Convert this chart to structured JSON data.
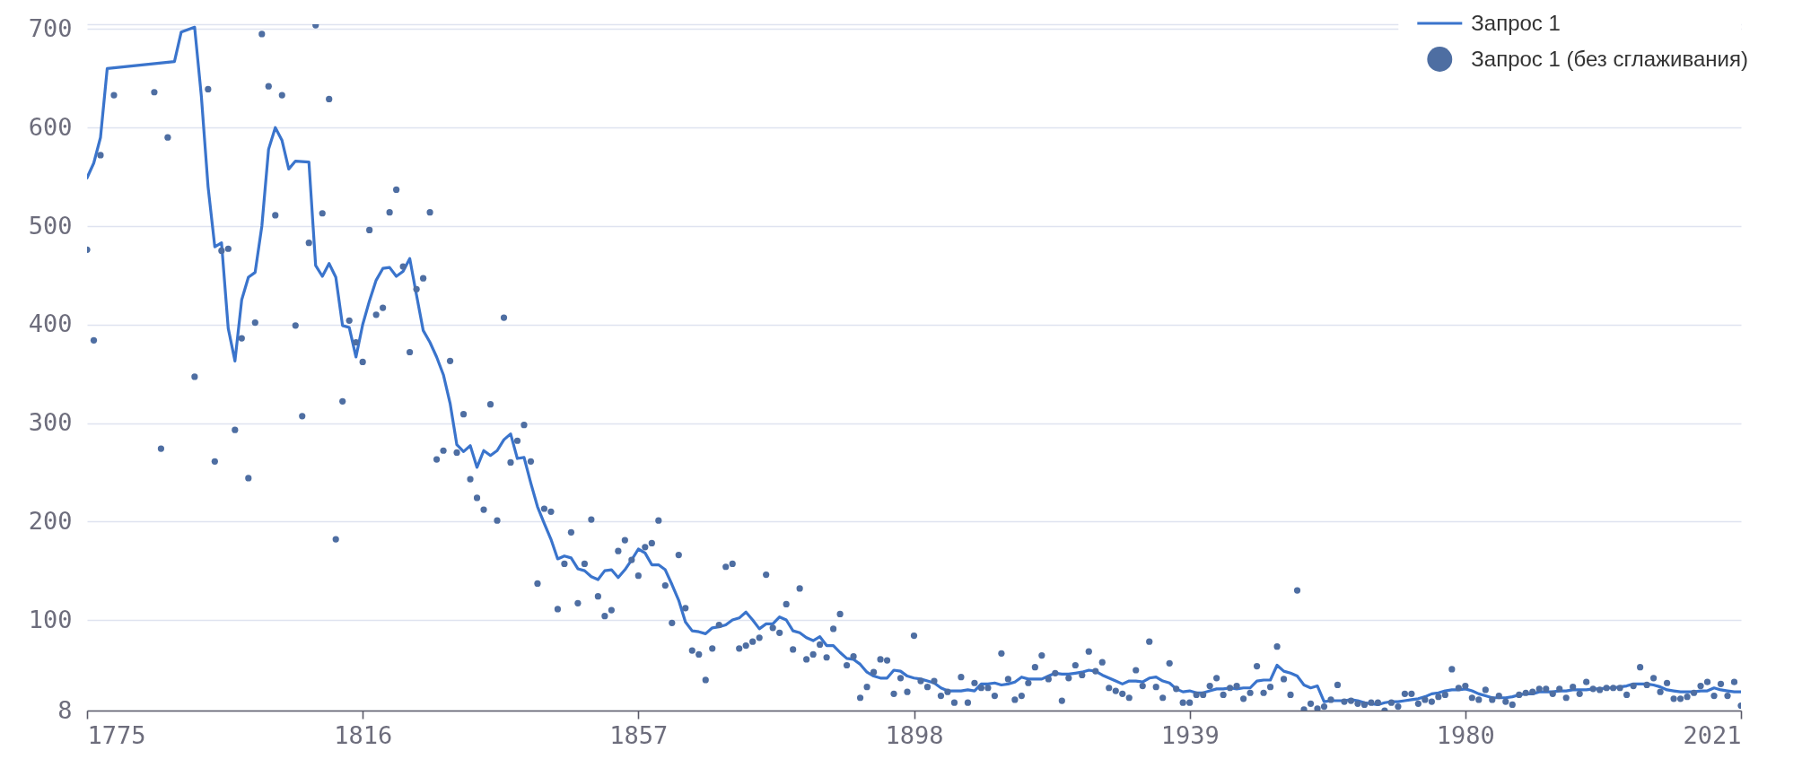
{
  "chart_data": {
    "type": "line",
    "xlim": [
      1775,
      2021
    ],
    "xticks": [
      1775,
      1816,
      1857,
      1898,
      1939,
      1980,
      2021
    ],
    "ylim": [
      8,
      705
    ],
    "yticks": [
      8,
      100,
      200,
      300,
      400,
      500,
      600,
      700,
      {
        "value": 705,
        "label": null
      }
    ],
    "grid": "y",
    "legend": "top right",
    "series": [
      {
        "name": "Запрос 1",
        "color": "#3a74cc",
        "x": [
          1775,
          1776,
          1777,
          1778,
          1788,
          1789,
          1791,
          1792,
          1793,
          1794,
          1795,
          1796,
          1797,
          1798,
          1799,
          1800,
          1801,
          1802,
          1803,
          1804,
          1805,
          1806,
          1808,
          1809,
          1810,
          1811,
          1812,
          1813,
          1814,
          1815,
          1816,
          1817,
          1818,
          1819,
          1820,
          1821,
          1822,
          1823,
          1824,
          1825,
          1826,
          1827,
          1828,
          1829,
          1830,
          1831,
          1832,
          1833,
          1834,
          1835,
          1836,
          1837,
          1838,
          1839,
          1840,
          1841,
          1842,
          1843,
          1844,
          1845,
          1846,
          1847,
          1848,
          1849,
          1850,
          1851,
          1852,
          1853,
          1854,
          1855,
          1856,
          1857,
          1858,
          1859,
          1860,
          1861,
          1862,
          1863,
          1864,
          1865,
          1866,
          1867,
          1868,
          1869,
          1870,
          1871,
          1872,
          1873,
          1874,
          1875,
          1876,
          1877,
          1878,
          1879,
          1880,
          1881,
          1882,
          1883,
          1884,
          1885,
          1886,
          1887,
          1888,
          1889,
          1890,
          1891,
          1892,
          1893,
          1894,
          1895,
          1896,
          1897,
          1898,
          1899,
          1900,
          1901,
          1902,
          1903,
          1904,
          1905,
          1906,
          1907,
          1908,
          1909,
          1910,
          1911,
          1912,
          1913,
          1914,
          1915,
          1916,
          1917,
          1918,
          1919,
          1920,
          1921,
          1922,
          1923,
          1924,
          1925,
          1926,
          1927,
          1928,
          1929,
          1930,
          1931,
          1932,
          1933,
          1934,
          1935,
          1936,
          1937,
          1938,
          1939,
          1940,
          1941,
          1942,
          1943,
          1944,
          1945,
          1946,
          1947,
          1948,
          1949,
          1950,
          1951,
          1952,
          1953,
          1954,
          1955,
          1956,
          1957,
          1958,
          1959,
          1960,
          1961,
          1962,
          1963,
          1964,
          1965,
          1966,
          1967,
          1968,
          1969,
          1970,
          1971,
          1972,
          1973,
          1974,
          1975,
          1976,
          1977,
          1978,
          1979,
          1980,
          1981,
          1982,
          1983,
          1984,
          1985,
          1986,
          1987,
          1988,
          1989,
          1990,
          1991,
          1992,
          1993,
          1994,
          1995,
          1996,
          1997,
          1998,
          1999,
          2000,
          2001,
          2002,
          2003,
          2004,
          2005,
          2006,
          2007,
          2008,
          2009,
          2010,
          2011,
          2012,
          2013,
          2014,
          2015,
          2016,
          2017,
          2018,
          2019,
          2020,
          2021
        ],
        "values": [
          549,
          564,
          590,
          660,
          667,
          697,
          702,
          632,
          540,
          479,
          483,
          396,
          363,
          425,
          448,
          453,
          500,
          578,
          600,
          587,
          558,
          566,
          565,
          460,
          449,
          462,
          448,
          399,
          397,
          367,
          400,
          424,
          445,
          457,
          458,
          449,
          454,
          467,
          430,
          394,
          382,
          367,
          349,
          320,
          278,
          271,
          277,
          255,
          272,
          267,
          272,
          283,
          289,
          264,
          265,
          239,
          215,
          198,
          182,
          162,
          165,
          163,
          152,
          150,
          144,
          141,
          150,
          151,
          143,
          151,
          161,
          172,
          168,
          156,
          156,
          151,
          136,
          120,
          98,
          89,
          88,
          86,
          92,
          93,
          95,
          100,
          102,
          108,
          100,
          91,
          96,
          96,
          103,
          100,
          89,
          87,
          82,
          79,
          83,
          74,
          74,
          67,
          61,
          60,
          55,
          47,
          43,
          41,
          41,
          49,
          48,
          43,
          41,
          40,
          38,
          36,
          31,
          28,
          28,
          28,
          29,
          28,
          35,
          35,
          36,
          34,
          35,
          37,
          42,
          40,
          40,
          40,
          43,
          46,
          45,
          45,
          46,
          47,
          49,
          48,
          44,
          41,
          38,
          35,
          38,
          38,
          37,
          41,
          42,
          38,
          36,
          30,
          27,
          28,
          26,
          26,
          28,
          30,
          30,
          31,
          30,
          31,
          31,
          38,
          39,
          39,
          54,
          48,
          46,
          43,
          34,
          31,
          33,
          17,
          18,
          18,
          18,
          19,
          18,
          16,
          15,
          14,
          16,
          17,
          17,
          18,
          19,
          20,
          22,
          25,
          26,
          28,
          29,
          29,
          30,
          28,
          25,
          23,
          21,
          21,
          21,
          22,
          24,
          25,
          25,
          27,
          27,
          27,
          28,
          28,
          29,
          29,
          29,
          30,
          30,
          31,
          31,
          32,
          33,
          35,
          35,
          35,
          34,
          32,
          29,
          28,
          27,
          27,
          27,
          28,
          28,
          31,
          29,
          28,
          27,
          27
        ]
      },
      {
        "name": "Запрос 1 (без сглаживания)",
        "type": "scatter",
        "marker": "circle",
        "color": "#4e6ea2",
        "x": [
          1775,
          1776,
          1777,
          1779,
          1785,
          1786,
          1787,
          1791,
          1793,
          1794,
          1795,
          1796,
          1797,
          1798,
          1799,
          1800,
          1801,
          1802,
          1803,
          1804,
          1806,
          1807,
          1808,
          1809,
          1810,
          1811,
          1812,
          1813,
          1814,
          1815,
          1816,
          1817,
          1818,
          1819,
          1820,
          1821,
          1822,
          1823,
          1824,
          1825,
          1826,
          1827,
          1828,
          1829,
          1830,
          1831,
          1832,
          1833,
          1834,
          1835,
          1836,
          1837,
          1838,
          1839,
          1840,
          1841,
          1842,
          1843,
          1844,
          1845,
          1846,
          1847,
          1848,
          1849,
          1850,
          1851,
          1852,
          1853,
          1854,
          1855,
          1856,
          1857,
          1858,
          1859,
          1860,
          1861,
          1862,
          1863,
          1864,
          1865,
          1866,
          1867,
          1868,
          1869,
          1870,
          1871,
          1872,
          1873,
          1874,
          1875,
          1876,
          1877,
          1878,
          1879,
          1880,
          1881,
          1882,
          1883,
          1884,
          1885,
          1886,
          1887,
          1888,
          1889,
          1890,
          1891,
          1892,
          1893,
          1894,
          1895,
          1896,
          1897,
          1898,
          1899,
          1900,
          1901,
          1902,
          1903,
          1904,
          1905,
          1906,
          1907,
          1908,
          1909,
          1910,
          1911,
          1912,
          1913,
          1914,
          1915,
          1916,
          1917,
          1918,
          1919,
          1920,
          1921,
          1922,
          1923,
          1924,
          1925,
          1926,
          1927,
          1928,
          1929,
          1930,
          1931,
          1932,
          1933,
          1934,
          1935,
          1936,
          1937,
          1938,
          1939,
          1940,
          1941,
          1942,
          1943,
          1944,
          1945,
          1946,
          1947,
          1948,
          1949,
          1950,
          1951,
          1952,
          1953,
          1954,
          1955,
          1956,
          1957,
          1958,
          1959,
          1960,
          1961,
          1962,
          1963,
          1964,
          1965,
          1966,
          1967,
          1968,
          1969,
          1970,
          1971,
          1972,
          1973,
          1974,
          1975,
          1976,
          1977,
          1978,
          1979,
          1980,
          1981,
          1982,
          1983,
          1984,
          1985,
          1986,
          1987,
          1988,
          1989,
          1990,
          1991,
          1992,
          1993,
          1994,
          1995,
          1996,
          1997,
          1998,
          1999,
          2000,
          2001,
          2002,
          2003,
          2004,
          2005,
          2006,
          2007,
          2008,
          2009,
          2010,
          2011,
          2012,
          2013,
          2014,
          2015,
          2016,
          2017,
          2018,
          2019,
          2020,
          2021
        ],
        "values": [
          476,
          384,
          572,
          633,
          636,
          274,
          590,
          347,
          639,
          261,
          475,
          477,
          293,
          386,
          244,
          402,
          695,
          642,
          511,
          633,
          399,
          307,
          483,
          704,
          513,
          629,
          182,
          322,
          404,
          382,
          362,
          496,
          410,
          417,
          514,
          537,
          459,
          372,
          436,
          447,
          514,
          263,
          272,
          363,
          270,
          309,
          243,
          224,
          212,
          319,
          201,
          407,
          260,
          282,
          298,
          261,
          137,
          213,
          210,
          111,
          157,
          189,
          117,
          157,
          202,
          124,
          104,
          110,
          170,
          181,
          161,
          145,
          174,
          178,
          201,
          135,
          97,
          166,
          112,
          69,
          65,
          39,
          71,
          95,
          154,
          157,
          71,
          74,
          78,
          82,
          146,
          92,
          87,
          116,
          70,
          132,
          60,
          65,
          75,
          62,
          91,
          106,
          54,
          63,
          21,
          32,
          47,
          60,
          59,
          25,
          41,
          27,
          84,
          38,
          32,
          38,
          23,
          27,
          16,
          42,
          16,
          36,
          31,
          31,
          23,
          66,
          40,
          19,
          23,
          36,
          52,
          64,
          40,
          46,
          18,
          41,
          54,
          44,
          68,
          48,
          57,
          31,
          28,
          25,
          21,
          49,
          33,
          78,
          32,
          21,
          56,
          30,
          16,
          16,
          24,
          24,
          33,
          41,
          24,
          31,
          33,
          20,
          26,
          53,
          26,
          32,
          73,
          40,
          24,
          130,
          9,
          15,
          10,
          12,
          19,
          34,
          17,
          18,
          15,
          14,
          16,
          16,
          8,
          16,
          12,
          25,
          25,
          15,
          19,
          17,
          22,
          24,
          50,
          31,
          33,
          21,
          19,
          29,
          19,
          23,
          17,
          14,
          24,
          26,
          27,
          30,
          30,
          25,
          30,
          21,
          32,
          25,
          37,
          30,
          29,
          31,
          31,
          31,
          24,
          33,
          52,
          34,
          41,
          27,
          36,
          20,
          20,
          22,
          26,
          33,
          37,
          23,
          35,
          23,
          37,
          13
        ]
      }
    ]
  }
}
